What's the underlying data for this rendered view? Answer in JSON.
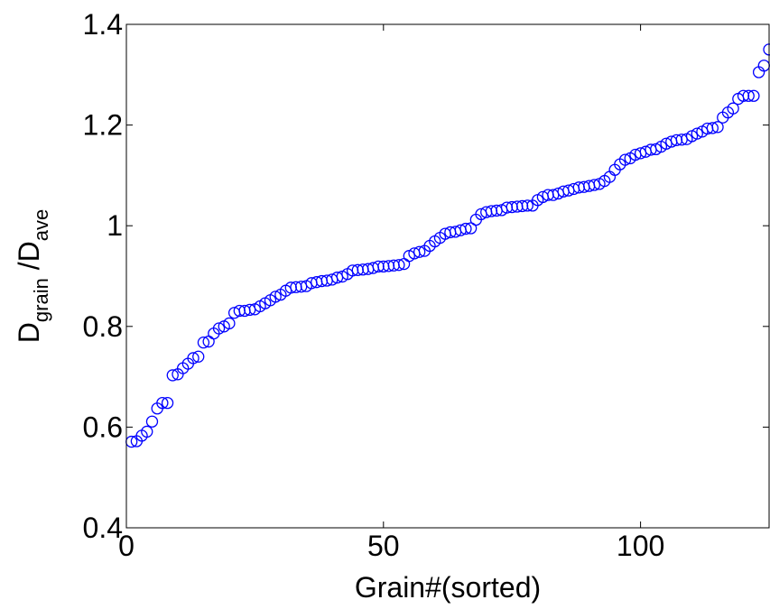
{
  "chart_data": {
    "type": "scatter",
    "title": "",
    "xlabel": "Grain#(sorted)",
    "ylabel": {
      "parts": [
        {
          "text": "D",
          "sub": false
        },
        {
          "text": "grain",
          "sub": true
        },
        {
          "text": " /D",
          "sub": false
        },
        {
          "text": "ave",
          "sub": true
        }
      ]
    },
    "xlim": [
      0,
      125
    ],
    "ylim": [
      0.4,
      1.4
    ],
    "xticks": [
      0,
      50,
      100
    ],
    "xtick_labels": [
      "0",
      "50",
      "100"
    ],
    "yticks": [
      0.4,
      0.6,
      0.8,
      1.0,
      1.2,
      1.4
    ],
    "ytick_labels": [
      "0.4",
      "0.6",
      "0.8",
      "1",
      "1.2",
      "1.4"
    ],
    "grid": false,
    "marker": "open-circle",
    "color": "#0000ff",
    "series": [
      {
        "x": [
          1,
          2,
          3,
          4,
          5,
          6,
          7,
          8,
          9,
          10,
          11,
          12,
          13,
          14,
          15,
          16,
          17,
          18,
          19,
          20,
          21,
          22,
          23,
          24,
          25,
          26,
          27,
          28,
          29,
          30,
          31,
          32,
          33,
          34,
          35,
          36,
          37,
          38,
          39,
          40,
          41,
          42,
          43,
          44,
          45,
          46,
          47,
          48,
          49,
          50,
          51,
          52,
          53,
          54,
          55,
          56,
          57,
          58,
          59,
          60,
          61,
          62,
          63,
          64,
          65,
          66,
          67,
          68,
          69,
          70,
          71,
          72,
          73,
          74,
          75,
          76,
          77,
          78,
          79,
          80,
          81,
          82,
          83,
          84,
          85,
          86,
          87,
          88,
          89,
          90,
          91,
          92,
          93,
          94,
          95,
          96,
          97,
          98,
          99,
          100,
          101,
          102,
          103,
          104,
          105,
          106,
          107,
          108,
          109,
          110,
          111,
          112,
          113,
          114,
          115,
          116,
          117,
          118,
          119,
          120,
          121,
          122,
          123,
          124,
          125
        ],
        "y": [
          0.571,
          0.572,
          0.583,
          0.591,
          0.611,
          0.637,
          0.648,
          0.648,
          0.703,
          0.705,
          0.717,
          0.726,
          0.737,
          0.74,
          0.768,
          0.77,
          0.786,
          0.796,
          0.8,
          0.806,
          0.827,
          0.831,
          0.831,
          0.833,
          0.834,
          0.84,
          0.846,
          0.852,
          0.859,
          0.863,
          0.871,
          0.877,
          0.878,
          0.879,
          0.88,
          0.886,
          0.888,
          0.89,
          0.891,
          0.893,
          0.897,
          0.899,
          0.904,
          0.911,
          0.912,
          0.913,
          0.914,
          0.916,
          0.919,
          0.919,
          0.92,
          0.921,
          0.922,
          0.924,
          0.94,
          0.945,
          0.948,
          0.95,
          0.96,
          0.969,
          0.976,
          0.984,
          0.987,
          0.988,
          0.991,
          0.994,
          0.995,
          1.012,
          1.023,
          1.027,
          1.029,
          1.03,
          1.031,
          1.036,
          1.037,
          1.038,
          1.039,
          1.04,
          1.04,
          1.051,
          1.057,
          1.061,
          1.061,
          1.064,
          1.068,
          1.07,
          1.073,
          1.076,
          1.077,
          1.079,
          1.081,
          1.083,
          1.089,
          1.097,
          1.111,
          1.122,
          1.131,
          1.134,
          1.141,
          1.144,
          1.147,
          1.151,
          1.152,
          1.157,
          1.163,
          1.167,
          1.17,
          1.171,
          1.172,
          1.178,
          1.183,
          1.187,
          1.193,
          1.194,
          1.196,
          1.215,
          1.225,
          1.233,
          1.252,
          1.258,
          1.258,
          1.258,
          1.305,
          1.318,
          1.35
        ]
      }
    ]
  }
}
